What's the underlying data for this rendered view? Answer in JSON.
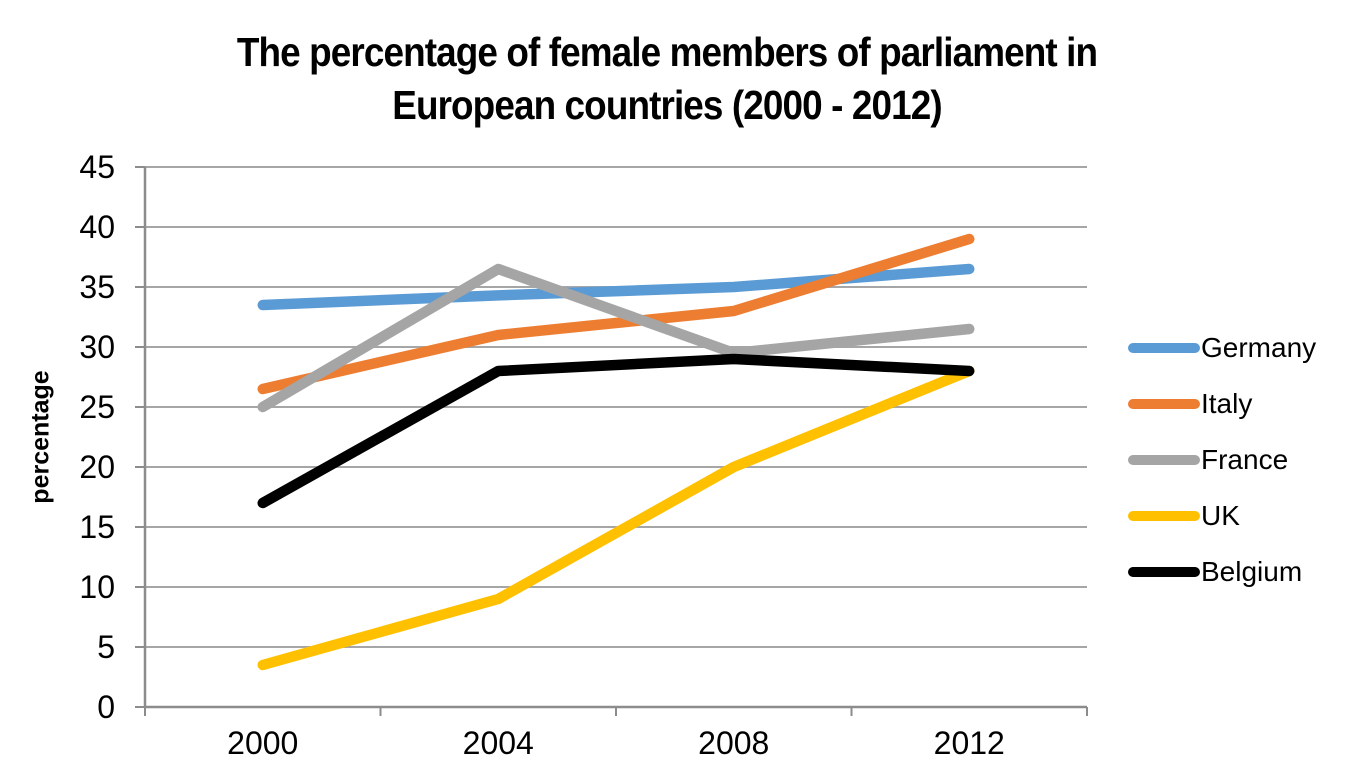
{
  "chart": {
    "title_line1": "The percentage of female members of parliament in",
    "title_line2": "European countries (2000 - 2012)"
  },
  "chart_data": {
    "type": "line",
    "title": "The percentage of female members of parliament in European countries (2000 - 2012)",
    "categories": [
      "2000",
      "2004",
      "2008",
      "2012"
    ],
    "series": [
      {
        "name": "Germany",
        "color": "#5B9BD5",
        "values": [
          33.5,
          34.3,
          35,
          36.5
        ]
      },
      {
        "name": "Italy",
        "color": "#ED7D31",
        "values": [
          26.5,
          31,
          33,
          39
        ]
      },
      {
        "name": "France",
        "color": "#A5A5A5",
        "values": [
          25,
          36.5,
          29.5,
          31.5
        ]
      },
      {
        "name": "UK",
        "color": "#FFC000",
        "values": [
          3.5,
          9,
          20,
          28
        ]
      },
      {
        "name": "Belgium",
        "color": "#000000",
        "values": [
          17,
          28,
          29,
          28
        ]
      }
    ],
    "xlabel": "",
    "ylabel": "percentage",
    "ylim": [
      0,
      45
    ],
    "y_ticks": [
      0,
      5,
      10,
      15,
      20,
      25,
      30,
      35,
      40,
      45
    ],
    "grid": "horizontal",
    "legend_position": "right"
  },
  "colors": {
    "background": "#FFFFFF",
    "gridline": "#A6A6A6",
    "axis": "#8C8C8C",
    "text": "#000000"
  }
}
